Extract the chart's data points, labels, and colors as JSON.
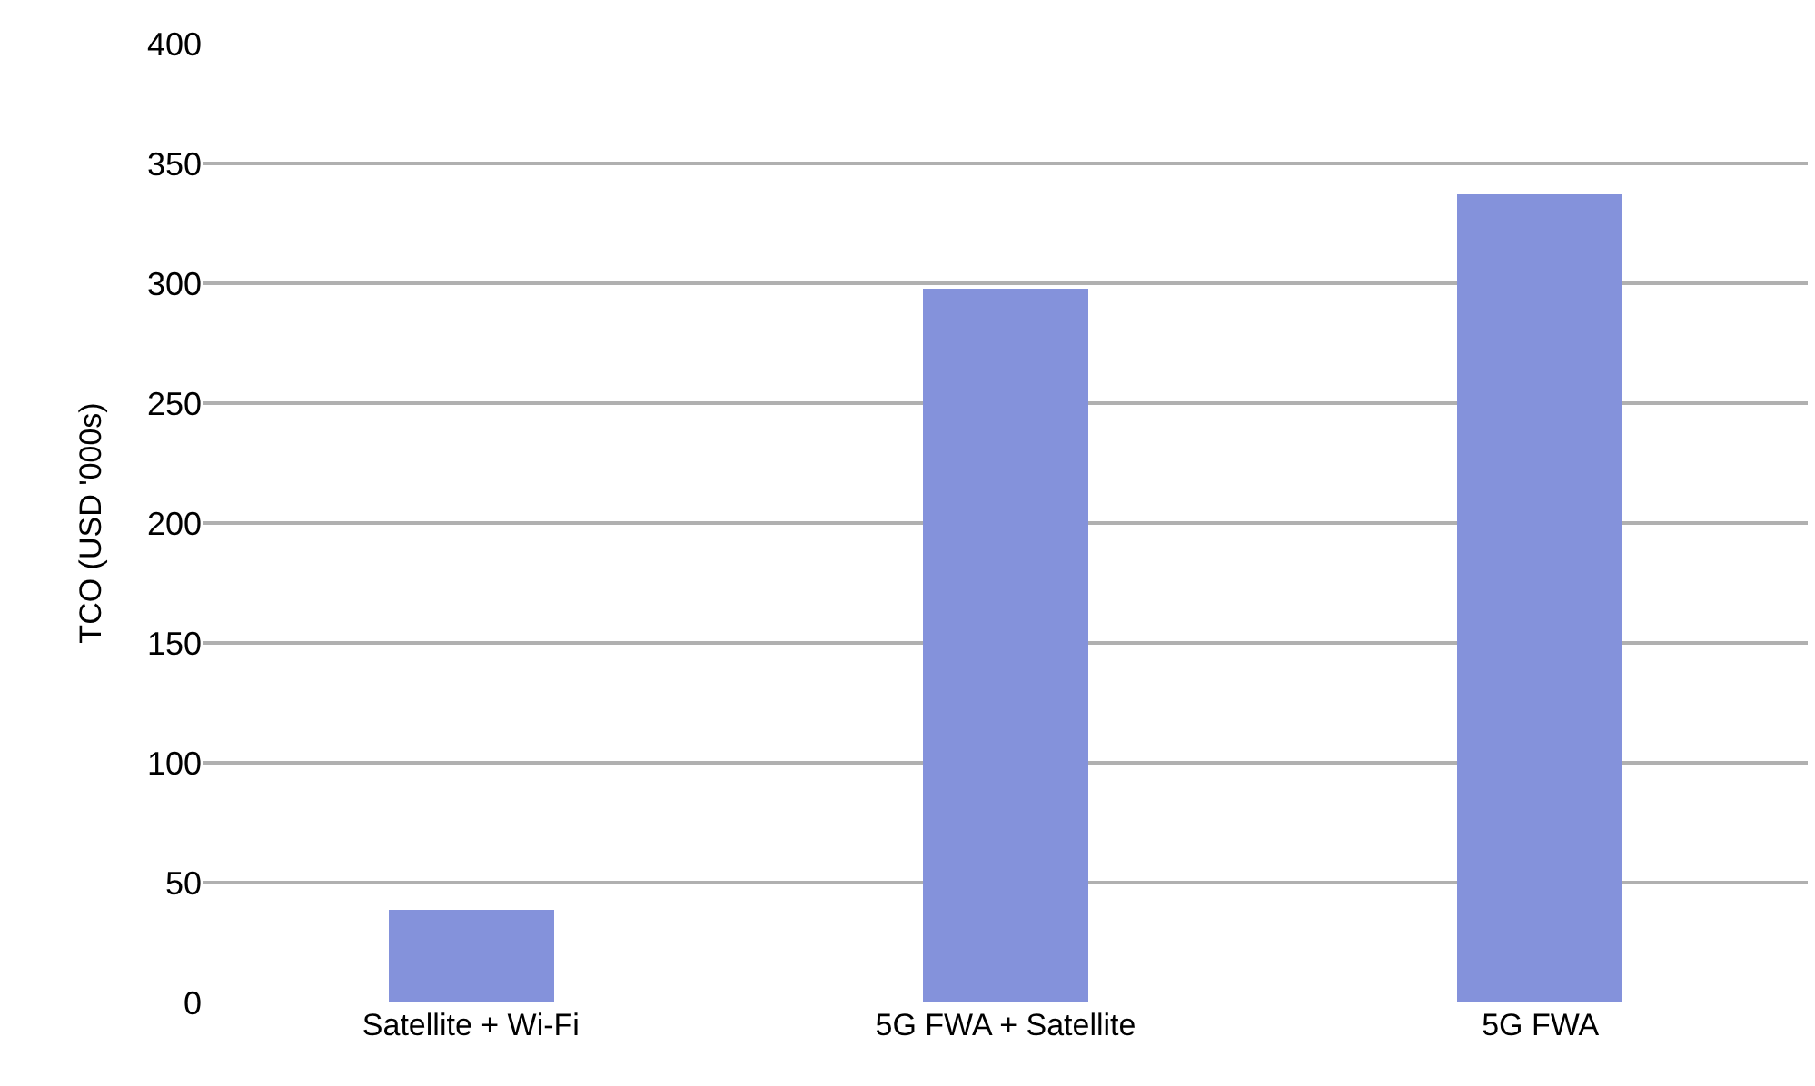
{
  "chart_data": {
    "type": "bar",
    "ylabel": "TCO (USD '000s)",
    "categories": [
      "Satellite + Wi-Fi",
      "5G FWA + Satellite",
      "5G FWA"
    ],
    "values": [
      39,
      298,
      337
    ],
    "color": "#8492db",
    "ylim": [
      0,
      400
    ],
    "yticks": [
      0,
      50,
      100,
      150,
      200,
      250,
      300,
      350,
      400
    ],
    "grid": "y"
  }
}
